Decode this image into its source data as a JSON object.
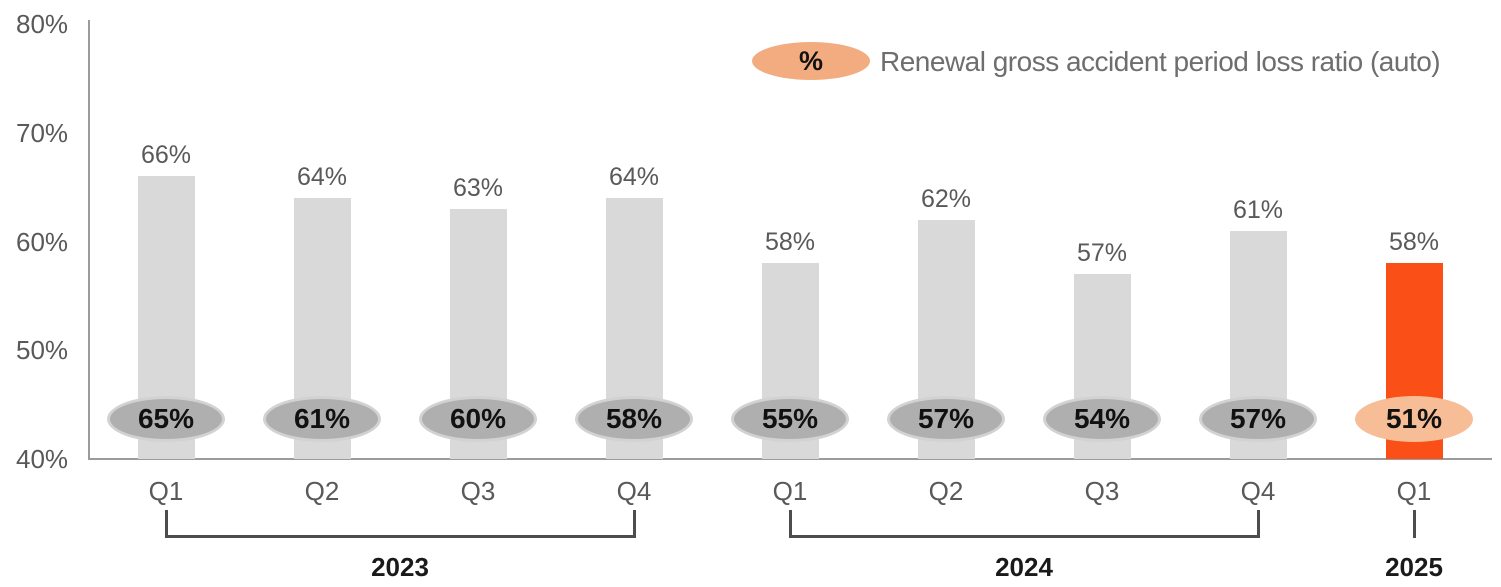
{
  "chart_data": {
    "type": "bar",
    "title": "",
    "legend": {
      "badge_label": "%",
      "label": "Renewal gross accident period loss ratio (auto)",
      "position": "top-right"
    },
    "categories": [
      "Q1",
      "Q2",
      "Q3",
      "Q4",
      "Q1",
      "Q2",
      "Q3",
      "Q4",
      "Q1"
    ],
    "year_groups": [
      {
        "label": "2023",
        "start": 0,
        "end": 3
      },
      {
        "label": "2024",
        "start": 4,
        "end": 7
      },
      {
        "label": "2025",
        "start": 8,
        "end": 8
      }
    ],
    "series": [
      {
        "role": "bar",
        "values": [
          66,
          64,
          63,
          64,
          58,
          62,
          57,
          61,
          58
        ],
        "labels": [
          "66%",
          "64%",
          "63%",
          "64%",
          "58%",
          "62%",
          "57%",
          "61%",
          "58%"
        ]
      },
      {
        "role": "oval-badge",
        "name": "Renewal gross accident period loss ratio (auto)",
        "values": [
          65,
          61,
          60,
          58,
          55,
          57,
          54,
          57,
          51
        ],
        "labels": [
          "65%",
          "61%",
          "60%",
          "58%",
          "55%",
          "57%",
          "54%",
          "57%",
          "51%"
        ]
      }
    ],
    "highlight_index": 8,
    "ylim": [
      40,
      80
    ],
    "yticks": {
      "values": [
        80,
        70,
        60,
        50,
        40
      ],
      "labels": [
        "80%",
        "70%",
        "60%",
        "50%",
        "40%"
      ]
    },
    "grid": false,
    "colors": {
      "bar": "#D9D9D9",
      "bar_highlight": "#FA4F16",
      "badge": "#AFAFAF",
      "badge_border": "#D2D2D2",
      "badge_highlight": "#F6BD96",
      "legend_badge": "#F2AC80",
      "axis": "#9B9B9B",
      "text_gray": "#595959",
      "bracket": "#4D4D4D"
    }
  }
}
